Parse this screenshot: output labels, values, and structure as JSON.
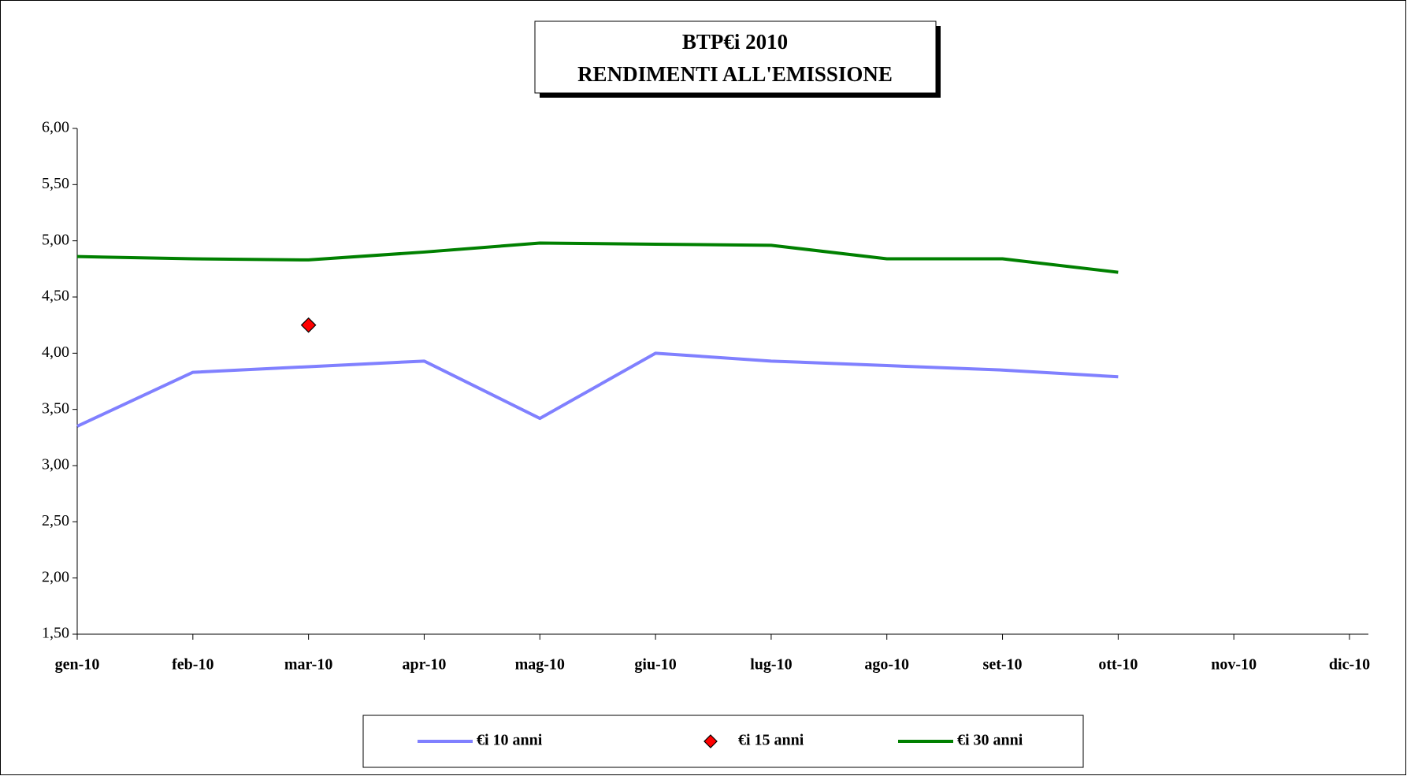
{
  "chart_data": {
    "type": "line",
    "title": "BTP€i 2010",
    "subtitle": "RENDIMENTI  ALL'EMISSIONE",
    "categories": [
      "gen-10",
      "feb-10",
      "mar-10",
      "apr-10",
      "mag-10",
      "giu-10",
      "lug-10",
      "ago-10",
      "set-10",
      "ott-10",
      "nov-10",
      "dic-10"
    ],
    "series": [
      {
        "name": "€i 10 anni",
        "color": "#8080ff",
        "values": [
          3.35,
          3.83,
          3.88,
          3.93,
          3.42,
          4.0,
          3.93,
          3.89,
          3.85,
          3.79,
          null,
          null
        ]
      },
      {
        "name": "€i 15 anni",
        "color": "#ff0000",
        "marker": "diamond",
        "values": [
          null,
          null,
          4.25,
          null,
          null,
          null,
          null,
          null,
          null,
          null,
          null,
          null
        ]
      },
      {
        "name": "€i 30 anni",
        "color": "#008000",
        "values": [
          4.86,
          4.84,
          4.83,
          4.9,
          4.98,
          4.97,
          4.96,
          4.84,
          4.84,
          4.72,
          null,
          null
        ]
      }
    ],
    "ylim": [
      1.5,
      6
    ],
    "yticks": [
      {
        "value": 1.5,
        "label": "1,50"
      },
      {
        "value": 2,
        "label": "2,00"
      },
      {
        "value": 2.5,
        "label": "2,50"
      },
      {
        "value": 3,
        "label": "3,00"
      },
      {
        "value": 3.5,
        "label": "3,50"
      },
      {
        "value": 4,
        "label": "4,00"
      },
      {
        "value": 4.5,
        "label": "4,50"
      },
      {
        "value": 5,
        "label": "5,00"
      },
      {
        "value": 5.5,
        "label": "5,50"
      },
      {
        "value": 6,
        "label": "6,00"
      }
    ],
    "grid": false,
    "legend": "bottom"
  }
}
